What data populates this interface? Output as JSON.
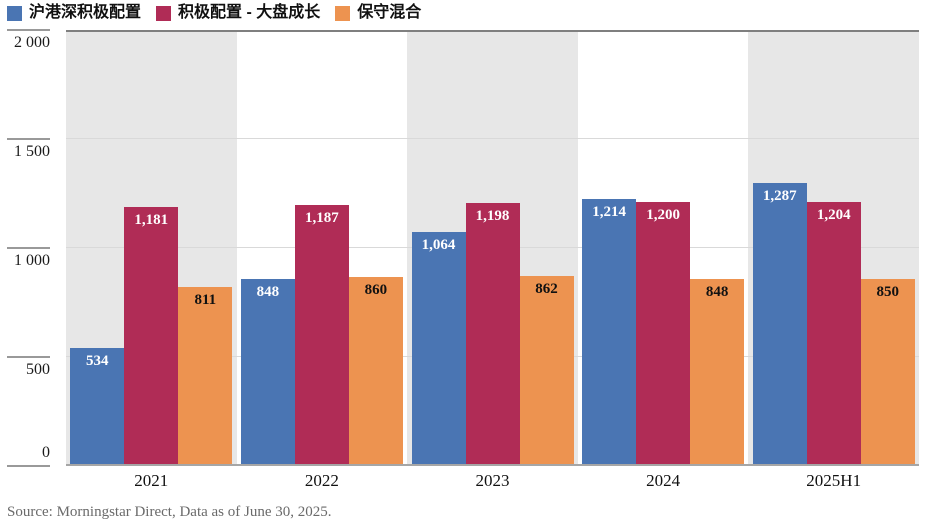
{
  "legend": [
    {
      "label": "沪港深积极配置",
      "color": "#4a75b3"
    },
    {
      "label": "积极配置 - 大盘成长",
      "color": "#b02c56"
    },
    {
      "label": "保守混合",
      "color": "#ed9350"
    }
  ],
  "chart_data": {
    "type": "bar",
    "categories": [
      "2021",
      "2022",
      "2023",
      "2024",
      "2025H1"
    ],
    "series": [
      {
        "name": "沪港深积极配置",
        "color": "#4a75b3",
        "label_color": "#ffffff",
        "values": [
          534,
          848,
          1064,
          1214,
          1287
        ],
        "value_labels": [
          "534",
          "848",
          "1,064",
          "1,214",
          "1,287"
        ]
      },
      {
        "name": "积极配置 - 大盘成长",
        "color": "#b02c56",
        "label_color": "#ffffff",
        "values": [
          1181,
          1187,
          1198,
          1200,
          1204
        ],
        "value_labels": [
          "1,181",
          "1,187",
          "1,198",
          "1,200",
          "1,204"
        ]
      },
      {
        "name": "保守混合",
        "color": "#ed9350",
        "label_color": "#111111",
        "values": [
          811,
          860,
          862,
          848,
          850
        ],
        "value_labels": [
          "811",
          "860",
          "862",
          "848",
          "850"
        ]
      }
    ],
    "ylim": [
      0,
      2000
    ],
    "yticks": [
      0,
      500,
      1000,
      1500,
      2000
    ],
    "ytick_labels": [
      "0",
      "500",
      "1 000",
      "1 500",
      "2 000"
    ],
    "grid": true,
    "band_colors": [
      "#e7e7e7",
      "#ffffff"
    ],
    "legend_position": "top-left",
    "title": "",
    "xlabel": "",
    "ylabel": ""
  },
  "source": "Source: Morningstar Direct,  Data as of June 30, 2025."
}
